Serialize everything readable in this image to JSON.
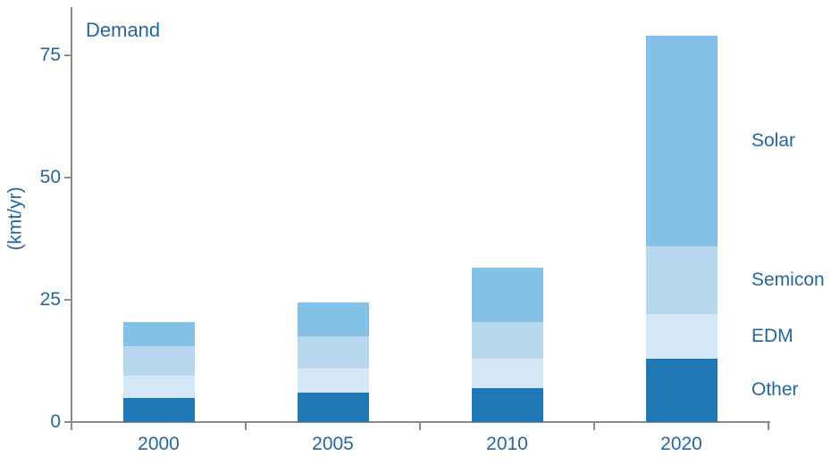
{
  "chart_data": {
    "type": "stacked-bar",
    "title": "Demand",
    "ylabel": "(kmt/yr)",
    "xlabel": "",
    "categories": [
      "2000",
      "2005",
      "2010",
      "2020"
    ],
    "series": [
      {
        "name": "Other",
        "color": "#2079B5",
        "values": [
          5,
          6,
          7,
          13
        ]
      },
      {
        "name": "EDM",
        "color": "#D6E8F7",
        "values": [
          4.5,
          5,
          6,
          9
        ]
      },
      {
        "name": "Semicon",
        "color": "#B7D8EE",
        "values": [
          6,
          6.5,
          7.5,
          14
        ]
      },
      {
        "name": "Solar",
        "color": "#83C1E6",
        "values": [
          5,
          7,
          11,
          43
        ]
      }
    ],
    "ylim": [
      0,
      80
    ],
    "yticks": [
      0,
      25,
      50,
      75
    ],
    "grid": false,
    "legend_position": "right-of-last-bar",
    "legend_order_top_to_bottom": [
      "Solar",
      "Semicon",
      "EDM",
      "Other"
    ]
  },
  "style": {
    "text_color": "#26679B",
    "axis_color": "#8A8A8A",
    "background": "#FFFFFF"
  }
}
